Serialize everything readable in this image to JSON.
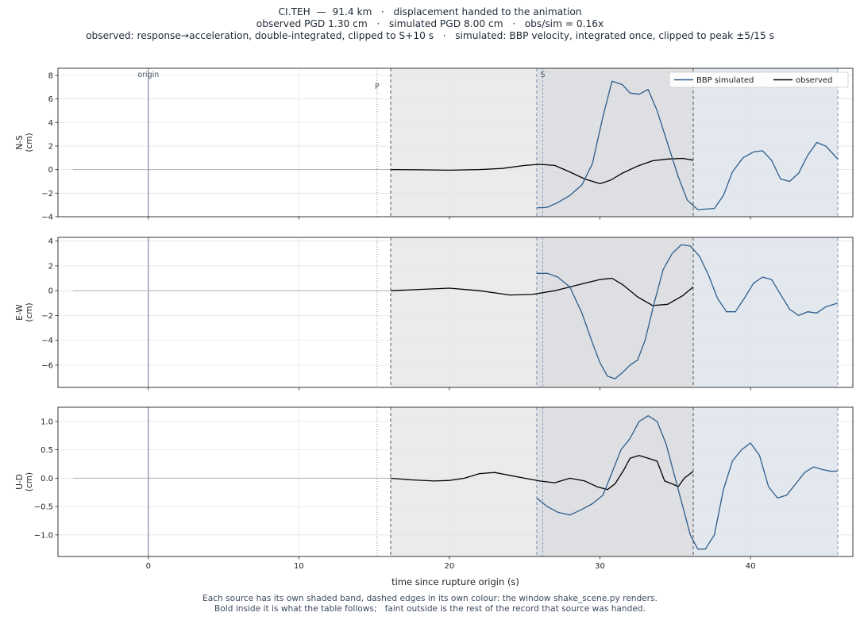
{
  "title": {
    "line1": "CI.TEH  —  91.4 km   ·   displacement handed to the animation",
    "line2": "observed PGD 1.30 cm   ·   simulated PGD 8.00 cm   ·   obs/sim = 0.16x",
    "line3": "observed: response→acceleration, double-integrated, clipped to S+10 s   ·   simulated: BBP velocity, integrated once, clipped to peak ±5/15 s"
  },
  "footer": {
    "line1": "Each source has its own shaded band, dashed edges in its own colour: the window shake_scene.py renders.",
    "line2": "Bold inside it is what the table follows;   faint outside is the rest of the record that source was handed."
  },
  "colors": {
    "simulated": "#2e5d8a",
    "observed": "#000000",
    "pre_event": "#b0b0b0",
    "observed_band": "#ebebeb",
    "simulated_band": "#e3e8ef",
    "overlap_band": "#dedfe2",
    "origin_line": "#9aa5b1",
    "phase_line": "#888888"
  },
  "chart_data": {
    "type": "line",
    "xlabel": "time since rupture origin (s)",
    "xlim": [
      -6,
      46.8
    ],
    "xticks": [
      0,
      10,
      20,
      30,
      40
    ],
    "legend": {
      "position": "top-right",
      "entries": [
        "BBP simulated",
        "observed"
      ]
    },
    "markers": {
      "origin": {
        "t": 0,
        "label": "origin"
      },
      "P": {
        "t": 15.2,
        "label": "P"
      },
      "S": {
        "t": 26.2,
        "label": "S"
      }
    },
    "windows": {
      "observed": [
        16.1,
        36.2
      ],
      "simulated": [
        25.8,
        45.8
      ]
    },
    "panels": [
      {
        "ylabel": [
          "N-S",
          "(cm)"
        ],
        "ylim": [
          -4,
          8.6
        ],
        "yticks": [
          -4,
          -2,
          0,
          2,
          4,
          6,
          8
        ],
        "series": [
          {
            "name": "observed",
            "x": [
              16.1,
              18,
              20,
              22,
              23.5,
              25,
              26,
              27,
              28,
              29,
              30,
              30.7,
              31.5,
              32.5,
              33.5,
              34.5,
              35.5,
              36.2
            ],
            "y": [
              0,
              -0.02,
              -0.05,
              0.0,
              0.1,
              0.35,
              0.45,
              0.35,
              -0.2,
              -0.8,
              -1.2,
              -0.9,
              -0.3,
              0.3,
              0.75,
              0.9,
              0.95,
              0.8
            ]
          },
          {
            "name": "BBP simulated",
            "x": [
              25.8,
              26.5,
              27.2,
              28,
              28.8,
              29.5,
              30.2,
              30.8,
              31.5,
              32,
              32.6,
              33.2,
              33.8,
              34.5,
              35.2,
              35.8,
              36.5,
              37,
              37.6,
              38.2,
              38.8,
              39.5,
              40.2,
              40.8,
              41.4,
              42,
              42.6,
              43.2,
              43.8,
              44.4,
              45,
              45.8
            ],
            "y": [
              -3.25,
              -3.2,
              -2.8,
              -2.2,
              -1.3,
              0.5,
              4.5,
              7.5,
              7.2,
              6.5,
              6.4,
              6.8,
              5.0,
              2.2,
              -0.6,
              -2.6,
              -3.4,
              -3.35,
              -3.3,
              -2.2,
              -0.2,
              1.0,
              1.5,
              1.6,
              0.8,
              -0.8,
              -1.0,
              -0.3,
              1.2,
              2.3,
              2.0,
              0.9
            ]
          }
        ]
      },
      {
        "ylabel": [
          "E-W",
          "(cm)"
        ],
        "ylim": [
          -7.8,
          4.3
        ],
        "yticks": [
          -6,
          -4,
          -2,
          0,
          2,
          4
        ],
        "series": [
          {
            "name": "observed",
            "x": [
              16.1,
              18,
              20,
              22,
              24,
              25.5,
              27,
              28,
              29,
              30,
              30.8,
              31.5,
              32.5,
              33.5,
              34.5,
              35.5,
              36.2
            ],
            "y": [
              0,
              0.1,
              0.2,
              0.0,
              -0.35,
              -0.3,
              0.0,
              0.3,
              0.6,
              0.9,
              1.0,
              0.5,
              -0.5,
              -1.2,
              -1.1,
              -0.4,
              0.3
            ]
          },
          {
            "name": "BBP simulated",
            "x": [
              25.8,
              26.5,
              27.2,
              28,
              28.8,
              29.5,
              30,
              30.5,
              31,
              31.5,
              32,
              32.5,
              33,
              33.6,
              34.2,
              34.8,
              35.4,
              36,
              36.6,
              37.2,
              37.8,
              38.4,
              39,
              39.6,
              40.2,
              40.8,
              41.4,
              42,
              42.6,
              43.2,
              43.8,
              44.4,
              45,
              45.8
            ],
            "y": [
              1.4,
              1.4,
              1.1,
              0.3,
              -1.8,
              -4.2,
              -5.8,
              -6.9,
              -7.1,
              -6.6,
              -6.0,
              -5.6,
              -4.0,
              -1.0,
              1.7,
              3.0,
              3.7,
              3.6,
              2.8,
              1.3,
              -0.6,
              -1.7,
              -1.7,
              -0.6,
              0.6,
              1.1,
              0.9,
              -0.3,
              -1.5,
              -2.0,
              -1.7,
              -1.8,
              -1.3,
              -1.0
            ]
          }
        ]
      },
      {
        "ylabel": [
          "U-D",
          "(cm)"
        ],
        "ylim": [
          -1.38,
          1.25
        ],
        "yticks": [
          -1.0,
          -0.5,
          0.0,
          0.5,
          1.0
        ],
        "series": [
          {
            "name": "observed",
            "x": [
              16.1,
              17.5,
              19,
              20,
              21,
              22,
              23,
              24,
              25,
              26,
              27,
              28,
              29,
              29.8,
              30.5,
              31,
              31.6,
              32,
              32.6,
              33.2,
              33.8,
              34.3,
              34.8,
              35.2,
              35.6,
              36.2
            ],
            "y": [
              0,
              -0.03,
              -0.05,
              -0.04,
              0.0,
              0.08,
              0.1,
              0.05,
              0.0,
              -0.05,
              -0.08,
              0.0,
              -0.05,
              -0.15,
              -0.2,
              -0.1,
              0.15,
              0.35,
              0.4,
              0.35,
              0.3,
              -0.05,
              -0.1,
              -0.15,
              0.0,
              0.12
            ]
          },
          {
            "name": "BBP simulated",
            "x": [
              25.8,
              26.5,
              27.2,
              28,
              28.8,
              29.5,
              30.2,
              30.8,
              31.4,
              32,
              32.6,
              33.2,
              33.8,
              34.4,
              35,
              35.6,
              36,
              36.5,
              37,
              37.6,
              38.2,
              38.8,
              39.4,
              40,
              40.6,
              41.2,
              41.8,
              42.4,
              43,
              43.6,
              44.2,
              44.8,
              45.4,
              45.8
            ],
            "y": [
              -0.35,
              -0.5,
              -0.6,
              -0.65,
              -0.55,
              -0.45,
              -0.3,
              0.1,
              0.5,
              0.7,
              1.0,
              1.1,
              1.0,
              0.6,
              0.0,
              -0.6,
              -1.0,
              -1.25,
              -1.25,
              -1.0,
              -0.2,
              0.3,
              0.5,
              0.62,
              0.4,
              -0.15,
              -0.35,
              -0.3,
              -0.1,
              0.1,
              0.2,
              0.15,
              0.12,
              0.13
            ]
          }
        ]
      }
    ]
  }
}
